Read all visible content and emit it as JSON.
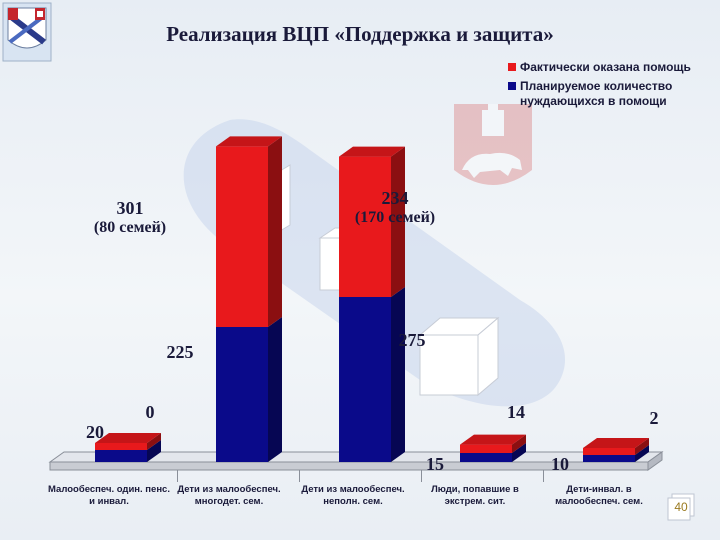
{
  "title": "Реализация ВЦП «Поддержка и защита»",
  "logo": {
    "icon": "city-coat-of-arms-icon"
  },
  "watermark": {
    "icon": "bear-coat-of-arms-icon"
  },
  "legend": {
    "placement": "top-right",
    "items": [
      {
        "label": "Фактически оказана помощь",
        "color": "#e8191c"
      },
      {
        "label": "Планируемое количество нуждающихся в помощи",
        "color": "#0a0a8a"
      }
    ]
  },
  "chart_data": {
    "type": "bar",
    "stacked": true,
    "three_d": true,
    "categories": [
      "Малообеспеч. один. пенс. и инвал.",
      "Дети из малообеспеч. многодет. сем.",
      "Дети из малообеспеч. неполн. сем.",
      "Люди, попавшие в экстрем. сит.",
      "Дети-инвал. в малообеспеч. сем."
    ],
    "series": [
      {
        "name": "Планируемое количество нуждающихся в помощи",
        "color": "#0a0a8a",
        "values": [
          20,
          225,
          275,
          15,
          10
        ]
      },
      {
        "name": "Фактически оказана помощь",
        "color": "#e8191c",
        "values": [
          0,
          301,
          234,
          14,
          2
        ]
      }
    ],
    "data_labels": {
      "planned": [
        "20",
        "225",
        "275",
        "15",
        "10"
      ],
      "actual": [
        "0",
        "301\n(80 семей)",
        "234\n(170 семей)",
        "14",
        "2"
      ]
    },
    "ylim": [
      0,
      560
    ],
    "grid": false
  },
  "page_number": "40"
}
